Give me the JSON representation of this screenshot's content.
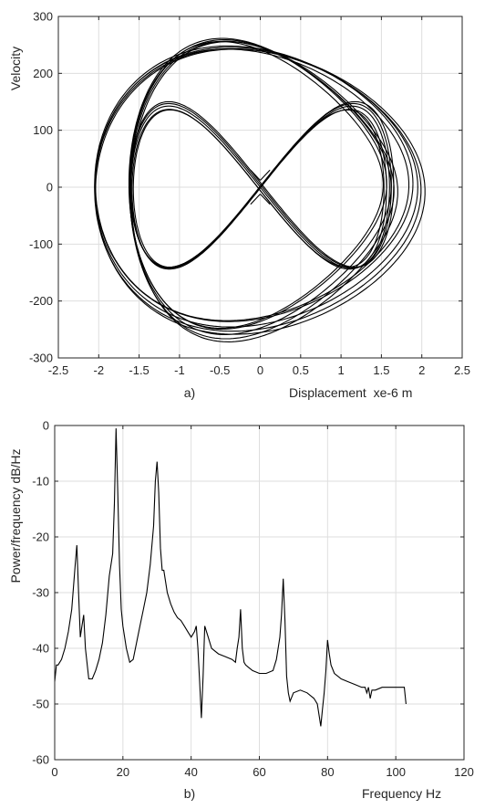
{
  "chart_data": [
    {
      "type": "line",
      "subplot_label": "a)",
      "xlabel": "Displacement  xe-6 m",
      "ylabel": "Velocity",
      "xlim": [
        -2.5,
        2.5
      ],
      "ylim": [
        -300,
        300
      ],
      "xticks": [
        "-2.5",
        "-2",
        "-1.5",
        "-1",
        "-0.5",
        "0",
        "0.5",
        "1",
        "1.5",
        "2",
        "2.5"
      ],
      "yticks": [
        "300",
        "200",
        "100",
        "0",
        "-100",
        "-200",
        "-300"
      ],
      "grid": true,
      "line_color": "#000000",
      "series": [
        {
          "description_of_shape": "phase-plane trajectory, several overlapping loops",
          "loops": [
            {
              "x_amplitude": 2.0,
              "v_peak": 250,
              "x_pinch": 1.85,
              "x_offset": -0.05
            },
            {
              "x_amplitude": 1.62,
              "v_peak": 255,
              "x_pinch": 1.0,
              "x_offset": 0.0
            },
            {
              "x_amplitude": 1.6,
              "v_peak": 150,
              "x_pinch": 0.0,
              "x_offset": 0.0
            }
          ]
        }
      ]
    },
    {
      "type": "line",
      "subplot_label": "b)",
      "xlabel": "Frequency Hz",
      "ylabel": "Power/frequency dB/Hz",
      "xlim": [
        0,
        120
      ],
      "ylim": [
        -60,
        0
      ],
      "xticks": [
        "0",
        "20",
        "40",
        "60",
        "80",
        "100",
        "120"
      ],
      "yticks": [
        "0",
        "-10",
        "-20",
        "-30",
        "-40",
        "-50",
        "-60"
      ],
      "grid": true,
      "line_color": "#000000",
      "series": [
        {
          "x": [
            0,
            0.5,
            1,
            2,
            3,
            4,
            5,
            5.5,
            6,
            6.5,
            7,
            7.5,
            8,
            8.5,
            9,
            10,
            11,
            12,
            13,
            14,
            15,
            16,
            17,
            17.5,
            18,
            18.5,
            19,
            19.5,
            20,
            21,
            22,
            23,
            24,
            25,
            26,
            27,
            28,
            29,
            29.5,
            30,
            30.5,
            31,
            31.5,
            32,
            33,
            34,
            35,
            36,
            37,
            38,
            39,
            40,
            41,
            41.5,
            42,
            42.5,
            43,
            43.5,
            44,
            45,
            46,
            48,
            50,
            52,
            53,
            53.5,
            54,
            54.5,
            55,
            55.5,
            56,
            57,
            58,
            60,
            62,
            64,
            65,
            66,
            66.5,
            67,
            67.5,
            68,
            68.5,
            69,
            70,
            72,
            74,
            76,
            77,
            77.5,
            78,
            78.5,
            79,
            79.5,
            80,
            80.5,
            81,
            82,
            84,
            86,
            88,
            90,
            91,
            91.5,
            92,
            92.5,
            93,
            94,
            96,
            98,
            100,
            102,
            102.5,
            103
          ],
          "y": [
            -46,
            -43,
            -43,
            -42,
            -40,
            -37,
            -33,
            -29,
            -25,
            -21.5,
            -30,
            -38,
            -36,
            -34,
            -40,
            -45.5,
            -45.5,
            -44,
            -42,
            -39,
            -34,
            -27,
            -23,
            -14,
            -0.5,
            -12,
            -25,
            -33,
            -36,
            -40,
            -42.5,
            -42,
            -39,
            -36,
            -33,
            -30,
            -25,
            -18,
            -10,
            -6.5,
            -12,
            -22,
            -26,
            -26,
            -30,
            -32,
            -33.5,
            -34.5,
            -35,
            -36,
            -37,
            -38,
            -37,
            -36,
            -40,
            -46,
            -52.5,
            -45,
            -36,
            -38,
            -40,
            -41,
            -41.5,
            -42,
            -42.5,
            -40,
            -38,
            -33,
            -40,
            -42.5,
            -43,
            -43.5,
            -44,
            -44.5,
            -44.5,
            -44,
            -42,
            -38,
            -34,
            -27.5,
            -35,
            -45,
            -48,
            -49.5,
            -48,
            -47.5,
            -48,
            -49,
            -50,
            -52,
            -54,
            -51,
            -48,
            -44,
            -38.5,
            -41,
            -43,
            -44.5,
            -45.5,
            -46,
            -46.5,
            -47,
            -47,
            -48,
            -47,
            -49,
            -47.5,
            -47.5,
            -47,
            -47,
            -47,
            -47,
            -47,
            -50
          ]
        }
      ]
    }
  ]
}
